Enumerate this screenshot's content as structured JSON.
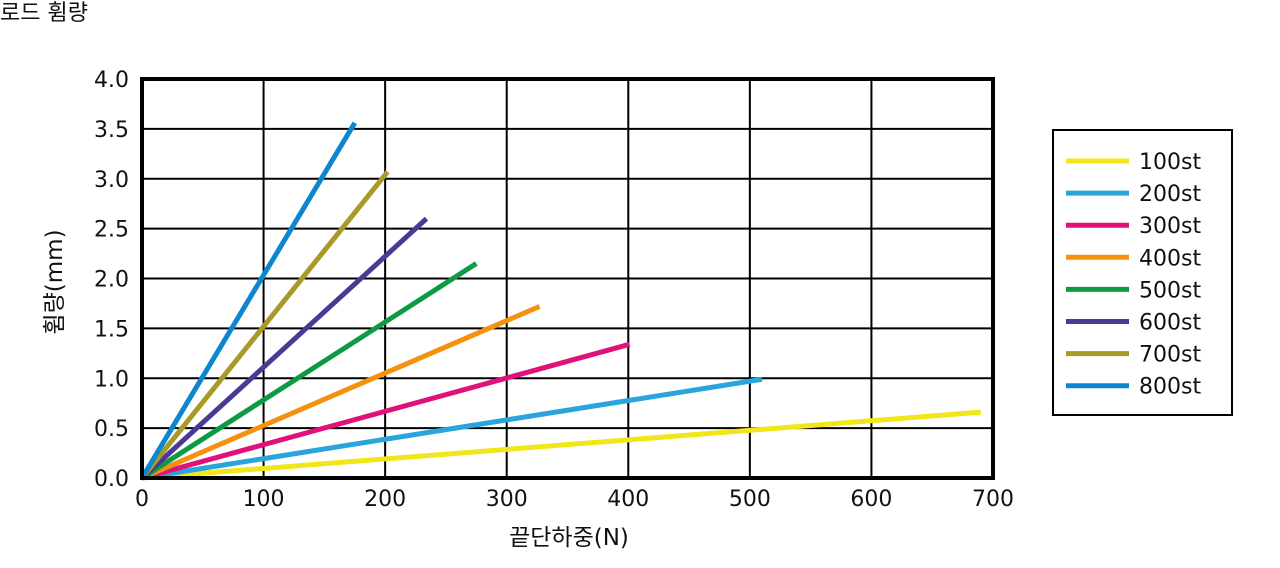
{
  "title": "로드 휨량",
  "chart_data": {
    "type": "line",
    "xlabel": "끝단하중(N)",
    "ylabel": "휨량(mm)",
    "xlim": [
      0,
      700
    ],
    "ylim": [
      0,
      4.0
    ],
    "x_ticks": [
      "0",
      "100",
      "200",
      "300",
      "400",
      "500",
      "600",
      "700"
    ],
    "y_ticks": [
      "0.0",
      "0.5",
      "1.0",
      "1.5",
      "2.0",
      "2.5",
      "3.0",
      "3.5",
      "4.0"
    ],
    "grid": true,
    "legend_position": "right",
    "series": [
      {
        "name": "100st",
        "color": "#f2e61b",
        "x": [
          0,
          690
        ],
        "y": [
          0,
          0.66
        ]
      },
      {
        "name": "200st",
        "color": "#2aa5dc",
        "x": [
          0,
          510
        ],
        "y": [
          0,
          0.99
        ]
      },
      {
        "name": "300st",
        "color": "#e0117a",
        "x": [
          0,
          401
        ],
        "y": [
          0,
          1.34
        ]
      },
      {
        "name": "400st",
        "color": "#f4920f",
        "x": [
          0,
          327
        ],
        "y": [
          0,
          1.72
        ]
      },
      {
        "name": "500st",
        "color": "#0d9a43",
        "x": [
          0,
          275
        ],
        "y": [
          0,
          2.15
        ]
      },
      {
        "name": "600st",
        "color": "#4a3a94",
        "x": [
          0,
          234
        ],
        "y": [
          0,
          2.6
        ]
      },
      {
        "name": "700st",
        "color": "#a99a27",
        "x": [
          0,
          202
        ],
        "y": [
          0,
          3.07
        ]
      },
      {
        "name": "800st",
        "color": "#0d86cf",
        "x": [
          0,
          175
        ],
        "y": [
          0,
          3.56
        ]
      }
    ]
  }
}
